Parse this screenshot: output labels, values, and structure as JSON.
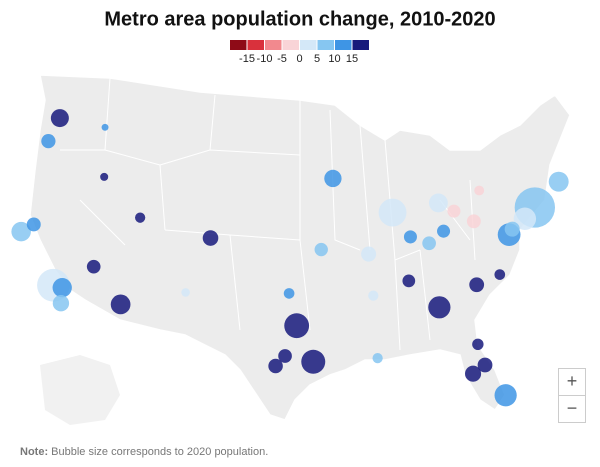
{
  "title": "Metro area population change, 2010-2020",
  "legend": {
    "colors": [
      "#8e0b17",
      "#d9313c",
      "#f2898e",
      "#f9d4d7",
      "#d4e8f8",
      "#86c6f1",
      "#3e95e5",
      "#171a7c"
    ],
    "ticks": [
      -15,
      -10,
      -5,
      0,
      5,
      10,
      15
    ]
  },
  "metros": {
    "lon": [
      -74.0,
      -118.2,
      -87.6,
      -96.8,
      -95.4,
      -77.0,
      -75.2,
      -84.4,
      -80.2,
      -112.1,
      -71.06,
      -122.4,
      -117.4,
      -83.05,
      -122.3,
      -93.27,
      -117.16,
      -82.46,
      -104.99,
      -76.6,
      -90.2,
      -81.38,
      -80.84,
      -98.5,
      -122.68,
      -121.49,
      -79.99,
      -97.74,
      -115.14,
      -84.5,
      -94.58,
      -82.99,
      -86.16,
      -81.69,
      -86.78,
      -78.64,
      -81.66,
      -97.5,
      -111.89,
      -90.05,
      -90.07,
      -78.88,
      -106.65,
      -116.2,
      -117.4
    ],
    "lat": [
      40.7,
      34.05,
      41.9,
      32.8,
      29.8,
      38.9,
      39.95,
      33.75,
      25.8,
      33.45,
      42.36,
      37.77,
      34.0,
      42.33,
      47.6,
      44.98,
      32.72,
      27.95,
      39.74,
      39.3,
      38.6,
      28.54,
      35.23,
      29.42,
      45.52,
      38.58,
      40.44,
      30.27,
      36.17,
      39.1,
      39.1,
      39.96,
      39.77,
      41.5,
      36.16,
      35.78,
      30.33,
      35.47,
      40.76,
      35.15,
      29.95,
      42.89,
      35.08,
      43.6,
      47.66
    ],
    "change": [
      7.2,
      3.9,
      1.7,
      20,
      19.8,
      12.2,
      4.3,
      15.5,
      11.2,
      16.4,
      7.8,
      9.9,
      10.1,
      0.8,
      17.3,
      11.5,
      7.6,
      16.1,
      19.3,
      6.1,
      1.6,
      24.5,
      18.8,
      20.1,
      13.1,
      11,
      -1.3,
      33,
      16.1,
      5.5,
      9.6,
      12.4,
      11.9,
      -0.8,
      21.2,
      23.4,
      18.5,
      14.5,
      16.4,
      2.6,
      6.2,
      -0.6,
      3.9,
      22.8,
      10
    ],
    "population": [
      20.1,
      13.2,
      9.6,
      7.6,
      7.1,
      6.4,
      6.2,
      6.1,
      6.1,
      4.8,
      4.9,
      4.7,
      4.6,
      4.4,
      4.0,
      3.7,
      3.3,
      3.2,
      3.0,
      2.8,
      2.8,
      2.7,
      2.7,
      2.6,
      2.5,
      2.4,
      2.4,
      2.3,
      2.3,
      2.3,
      2.2,
      2.1,
      2.1,
      2.1,
      2.0,
      1.4,
      1.6,
      1.4,
      1.3,
      1.3,
      1.3,
      1.2,
      0.9,
      0.8,
      0.6
    ]
  },
  "zoom": {
    "in": "+",
    "out": "−"
  },
  "note": {
    "label": "Note:",
    "text": "Bubble size corresponds to 2020 population."
  }
}
